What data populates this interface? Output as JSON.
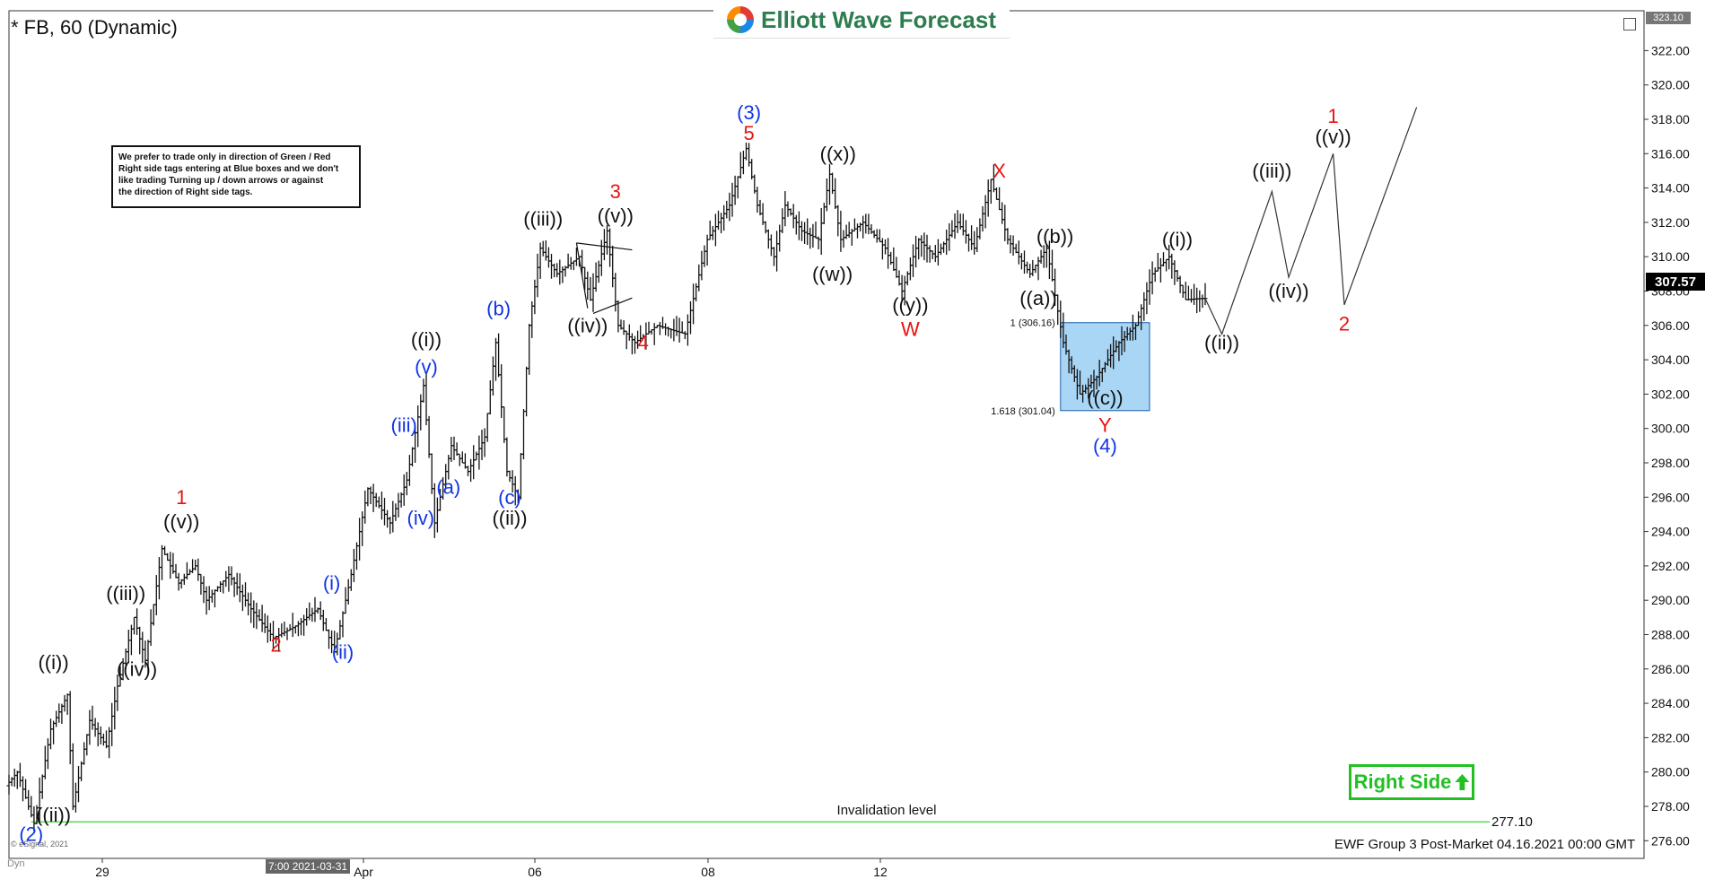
{
  "header": {
    "symbol_title": "* FB, 60 (Dynamic)",
    "brand": "Elliott Wave Forecast"
  },
  "note": {
    "lines": [
      "We prefer to trade only in direction of Green / Red",
      "Right side tags entering at Blue boxes and we don't",
      "like trading Turning up / down arrows or against",
      "the direction of Right side tags."
    ]
  },
  "right_side_tag": {
    "label": "Right Side",
    "color": "#22c022",
    "icon": "arrow-up-icon"
  },
  "footer": {
    "text": "EWF Group 3 Post-Market 04.16.2021 00:00 GMT",
    "copyright": "© eSignal, 2021",
    "mode": "Dyn"
  },
  "crosshair_label": "7:00 2021-03-31",
  "last_price_label": "307.57",
  "top_price_label": "323.10",
  "colors": {
    "red": "#e8130f",
    "blue": "#1035e6",
    "black": "#111111",
    "box_fill": "#a9d6f5",
    "invalidation": "#37d237"
  },
  "chart_data": {
    "type": "bar",
    "title": "* FB, 60 (Dynamic)",
    "xlabel": "",
    "ylabel": "",
    "ylim": [
      274.3,
      323.1
    ],
    "x_ticks": [
      "29",
      "Apr",
      "06",
      "08",
      "12"
    ],
    "y_ticks": [
      276,
      278,
      280,
      282,
      284,
      286,
      288,
      290,
      292,
      294,
      296,
      298,
      300,
      302,
      304,
      306,
      308,
      310,
      312,
      314,
      316,
      318,
      320,
      322
    ],
    "grid": false,
    "price_path": [
      [
        0,
        279.2
      ],
      [
        2,
        280.0
      ],
      [
        5,
        277.0
      ],
      [
        8,
        282.5
      ],
      [
        11,
        284.5
      ],
      [
        12,
        278.0
      ],
      [
        15,
        283.0
      ],
      [
        18,
        281.5
      ],
      [
        20,
        285.0
      ],
      [
        23,
        289.0
      ],
      [
        25,
        286.5
      ],
      [
        28,
        293.0
      ],
      [
        31,
        291.0
      ],
      [
        34,
        292.0
      ],
      [
        36,
        290.0
      ],
      [
        40,
        291.5
      ],
      [
        44,
        289.5
      ],
      [
        48,
        287.8
      ],
      [
        52,
        288.5
      ],
      [
        56,
        289.5
      ],
      [
        59,
        287.0
      ],
      [
        62,
        291.5
      ],
      [
        65,
        296.5
      ],
      [
        69,
        294.5
      ],
      [
        72,
        297.0
      ],
      [
        75,
        302.5
      ],
      [
        77,
        294.5
      ],
      [
        80,
        299.0
      ],
      [
        83,
        297.5
      ],
      [
        86,
        299.5
      ],
      [
        88,
        305.0
      ],
      [
        90,
        297.5
      ],
      [
        92,
        296.0
      ],
      [
        94,
        306.0
      ],
      [
        96,
        310.5
      ],
      [
        99,
        309.0
      ],
      [
        103,
        310.0
      ],
      [
        105,
        307.5
      ],
      [
        108,
        311.5
      ],
      [
        110,
        306.0
      ],
      [
        113,
        305.0
      ],
      [
        117,
        306.0
      ],
      [
        122,
        305.5
      ],
      [
        126,
        311.0
      ],
      [
        130,
        313.0
      ],
      [
        133,
        316.3
      ],
      [
        135,
        313.0
      ],
      [
        138,
        310.0
      ],
      [
        140,
        313.0
      ],
      [
        143,
        311.5
      ],
      [
        146,
        311.0
      ],
      [
        148,
        314.8
      ],
      [
        150,
        311.0
      ],
      [
        154,
        312.0
      ],
      [
        158,
        310.5
      ],
      [
        161,
        308.0
      ],
      [
        164,
        311.0
      ],
      [
        167,
        310.0
      ],
      [
        171,
        312.0
      ],
      [
        174,
        310.5
      ],
      [
        177,
        314.5
      ],
      [
        180,
        311.0
      ],
      [
        184,
        309.0
      ],
      [
        187,
        310.5
      ],
      [
        190,
        305.0
      ],
      [
        193,
        302.0
      ],
      [
        196,
        303.0
      ],
      [
        200,
        305.0
      ],
      [
        203,
        306.0
      ],
      [
        206,
        309.0
      ],
      [
        209,
        310.0
      ],
      [
        212,
        307.5
      ],
      [
        215,
        307.57
      ]
    ],
    "projection": [
      [
        215,
        307.57
      ],
      [
        218,
        305.5
      ],
      [
        227,
        313.8
      ],
      [
        230,
        308.8
      ],
      [
        238,
        316.0
      ],
      [
        240,
        307.2
      ],
      [
        253,
        318.7
      ]
    ],
    "fib_box": {
      "label_top": "1 (306.16)",
      "label_bottom": "1.618 (301.04)",
      "top": 306.16,
      "bottom": 301.04,
      "x_start": 189,
      "x_end": 205
    },
    "invalidation": {
      "label": "Invalidation level",
      "value": 277.1,
      "value_label": "277.10"
    },
    "triangle": [
      [
        102,
        310.8
      ],
      [
        112,
        310.4
      ],
      [
        104,
        307.0
      ],
      [
        105,
        306.7
      ],
      [
        112,
        307.6
      ]
    ],
    "wave_labels": [
      {
        "text": "(2)",
        "x": 4,
        "y": 276.0,
        "color": "blue"
      },
      {
        "text": "((ii))",
        "x": 8,
        "y": 277.1,
        "color": "black"
      },
      {
        "text": "((i))",
        "x": 8,
        "y": 286.0,
        "color": "black"
      },
      {
        "text": "((iii))",
        "x": 21,
        "y": 290.0,
        "color": "black"
      },
      {
        "text": "((iv))",
        "x": 23,
        "y": 285.6,
        "color": "black"
      },
      {
        "text": "((v))",
        "x": 31,
        "y": 294.2,
        "color": "black"
      },
      {
        "text": "1",
        "x": 31,
        "y": 295.6,
        "color": "red"
      },
      {
        "text": "2",
        "x": 48,
        "y": 287.0,
        "color": "red"
      },
      {
        "text": "(i)",
        "x": 58,
        "y": 290.6,
        "color": "blue"
      },
      {
        "text": "(ii)",
        "x": 60,
        "y": 286.6,
        "color": "blue"
      },
      {
        "text": "(iii)",
        "x": 71,
        "y": 299.8,
        "color": "blue"
      },
      {
        "text": "(iv)",
        "x": 74,
        "y": 294.4,
        "color": "blue"
      },
      {
        "text": "(v)",
        "x": 75,
        "y": 303.2,
        "color": "blue"
      },
      {
        "text": "((i))",
        "x": 75,
        "y": 304.8,
        "color": "black"
      },
      {
        "text": "(a)",
        "x": 79,
        "y": 296.2,
        "color": "blue"
      },
      {
        "text": "(b)",
        "x": 88,
        "y": 306.6,
        "color": "blue"
      },
      {
        "text": "(c)",
        "x": 90,
        "y": 295.6,
        "color": "blue"
      },
      {
        "text": "((ii))",
        "x": 90,
        "y": 294.4,
        "color": "black"
      },
      {
        "text": "((iii))",
        "x": 96,
        "y": 311.8,
        "color": "black"
      },
      {
        "text": "((iv))",
        "x": 104,
        "y": 305.6,
        "color": "black"
      },
      {
        "text": "((v))",
        "x": 109,
        "y": 312.0,
        "color": "black"
      },
      {
        "text": "3",
        "x": 109,
        "y": 313.4,
        "color": "red"
      },
      {
        "text": "4",
        "x": 114,
        "y": 304.6,
        "color": "red"
      },
      {
        "text": "(3)",
        "x": 133,
        "y": 318.0,
        "color": "blue"
      },
      {
        "text": "5",
        "x": 133,
        "y": 316.8,
        "color": "red"
      },
      {
        "text": "((x))",
        "x": 149,
        "y": 315.6,
        "color": "black"
      },
      {
        "text": "((w))",
        "x": 148,
        "y": 308.6,
        "color": "black"
      },
      {
        "text": "((y))",
        "x": 162,
        "y": 306.8,
        "color": "black"
      },
      {
        "text": "W",
        "x": 162,
        "y": 305.4,
        "color": "red"
      },
      {
        "text": "X",
        "x": 178,
        "y": 314.6,
        "color": "red"
      },
      {
        "text": "((b))",
        "x": 188,
        "y": 310.8,
        "color": "black"
      },
      {
        "text": "((a))",
        "x": 185,
        "y": 307.2,
        "color": "black"
      },
      {
        "text": "((c))",
        "x": 197,
        "y": 301.4,
        "color": "black"
      },
      {
        "text": "Y",
        "x": 197,
        "y": 299.8,
        "color": "red"
      },
      {
        "text": "(4)",
        "x": 197,
        "y": 298.6,
        "color": "blue"
      },
      {
        "text": "((i))",
        "x": 210,
        "y": 310.6,
        "color": "black"
      },
      {
        "text": "((ii))",
        "x": 218,
        "y": 304.6,
        "color": "black"
      },
      {
        "text": "((iii))",
        "x": 227,
        "y": 314.6,
        "color": "black"
      },
      {
        "text": "((iv))",
        "x": 230,
        "y": 307.6,
        "color": "black"
      },
      {
        "text": "((v))",
        "x": 238,
        "y": 316.6,
        "color": "black"
      },
      {
        "text": "1",
        "x": 238,
        "y": 317.8,
        "color": "red"
      },
      {
        "text": "2",
        "x": 240,
        "y": 305.7,
        "color": "red"
      }
    ]
  }
}
